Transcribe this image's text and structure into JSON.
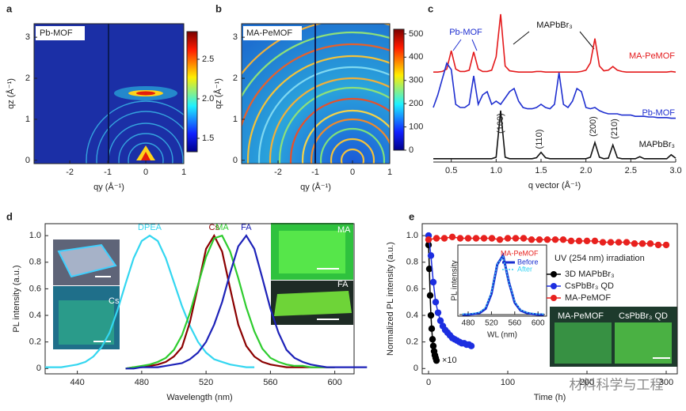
{
  "chart_data": [
    {
      "type": "image",
      "panel": "a",
      "label": "Pb-MOF",
      "xlabel": "qy (Å⁻¹)",
      "ylabel": "qz (Å⁻¹)",
      "xlim": [
        -2.94,
        1
      ],
      "xticks": [
        -2,
        -1,
        0,
        1
      ],
      "ylim": [
        -0.08,
        3.33
      ],
      "yticks": [
        0,
        1,
        2,
        3
      ],
      "colorbar": {
        "lim": [
          1.33,
          2.85
        ],
        "ticks": [
          1.5,
          {
            "value": 2,
            "label": "2.0"
          },
          2.5
        ]
      }
    },
    {
      "type": "image",
      "panel": "b",
      "label": "MA-PeMOF",
      "xlabel": "qy (Å⁻¹)",
      "ylabel": "qz (Å⁻¹)",
      "xlim": [
        -2.98,
        1
      ],
      "xticks": [
        -2,
        -1,
        0,
        1
      ],
      "ylim": [
        -0.08,
        3.33
      ],
      "yticks": [
        0,
        1,
        2,
        3
      ],
      "colorbar": {
        "lim": [
          0,
          520
        ],
        "ticks": [
          0,
          100,
          200,
          300,
          400,
          500
        ]
      }
    },
    {
      "type": "line",
      "panel": "c",
      "stacked": true,
      "xlabel": "q vector (Å⁻¹)",
      "xlim": [
        0.3,
        3.0
      ],
      "xticks": [
        0.5,
        {
          "value": 1,
          "label": "1.0"
        },
        1.5,
        {
          "value": 2,
          "label": "2.0"
        },
        2.5,
        {
          "value": 3,
          "label": "3.0"
        }
      ],
      "x": [
        0.3,
        0.35,
        0.4,
        0.45,
        0.5,
        0.55,
        0.6,
        0.65,
        0.7,
        0.75,
        0.8,
        0.85,
        0.9,
        0.95,
        1.0,
        1.05,
        1.1,
        1.15,
        1.2,
        1.25,
        1.3,
        1.35,
        1.4,
        1.45,
        1.5,
        1.55,
        1.6,
        1.65,
        1.7,
        1.75,
        1.8,
        1.85,
        1.9,
        1.95,
        2.0,
        2.05,
        2.1,
        2.15,
        2.2,
        2.25,
        2.3,
        2.35,
        2.4,
        2.45,
        2.5,
        2.55,
        2.6,
        2.65,
        2.7,
        2.75,
        2.8,
        2.85,
        2.9,
        2.95,
        3.0
      ],
      "series": [
        {
          "name": "MA-PeMOF",
          "color": "#e41a1c",
          "values": [
            0.05,
            0.05,
            0.06,
            0.1,
            0.4,
            0.1,
            0.06,
            0.06,
            0.08,
            0.38,
            0.1,
            0.06,
            0.06,
            0.08,
            0.3,
            1.0,
            0.15,
            0.07,
            0.06,
            0.05,
            0.05,
            0.05,
            0.05,
            0.06,
            0.06,
            0.05,
            0.05,
            0.05,
            0.05,
            0.05,
            0.05,
            0.05,
            0.05,
            0.06,
            0.08,
            0.2,
            0.6,
            0.15,
            0.07,
            0.08,
            0.14,
            0.08,
            0.06,
            0.05,
            0.05,
            0.05,
            0.05,
            0.05,
            0.05,
            0.05,
            0.05,
            0.05,
            0.05,
            0.06,
            0.05
          ]
        },
        {
          "name": "Pb-MOF",
          "color": "#1f2fd0",
          "values": [
            0.3,
            0.5,
            0.75,
            1.0,
            0.9,
            0.35,
            0.3,
            0.3,
            0.35,
            0.8,
            0.35,
            0.5,
            0.55,
            0.35,
            0.4,
            0.35,
            0.45,
            0.55,
            0.6,
            0.4,
            0.3,
            0.28,
            0.28,
            0.3,
            0.35,
            0.3,
            0.28,
            0.35,
            0.85,
            0.35,
            0.3,
            0.4,
            0.6,
            0.55,
            0.3,
            0.28,
            0.3,
            0.25,
            0.22,
            0.2,
            0.2,
            0.2,
            0.18,
            0.18,
            0.18,
            0.16,
            0.16,
            0.16,
            0.15,
            0.15,
            0.14,
            0.14,
            0.14,
            0.13,
            0.13
          ]
        },
        {
          "name": "MAPbBr₃",
          "color": "#111111",
          "values": [
            0.02,
            0.02,
            0.02,
            0.02,
            0.02,
            0.02,
            0.02,
            0.02,
            0.02,
            0.02,
            0.02,
            0.02,
            0.02,
            0.02,
            0.05,
            1.0,
            0.05,
            0.02,
            0.02,
            0.02,
            0.02,
            0.02,
            0.02,
            0.04,
            0.15,
            0.04,
            0.02,
            0.02,
            0.02,
            0.02,
            0.02,
            0.02,
            0.02,
            0.02,
            0.02,
            0.05,
            0.35,
            0.05,
            0.02,
            0.03,
            0.3,
            0.04,
            0.02,
            0.02,
            0.02,
            0.02,
            0.06,
            0.02,
            0.02,
            0.02,
            0.02,
            0.02,
            0.02,
            0.1,
            0.03
          ]
        }
      ],
      "annotations": [
        "Pb-MOF",
        "MAPbBr₃",
        "(100)",
        "(110)",
        "(200)",
        "(210)"
      ]
    },
    {
      "type": "line",
      "panel": "d",
      "xlabel": "Wavelength (nm)",
      "ylabel": "PL intensity (a.u.)",
      "xlim": [
        420,
        612
      ],
      "xticks": [
        440,
        480,
        520,
        560,
        600
      ],
      "ylim": [
        -0.04,
        1.09
      ],
      "yticks": [
        0,
        0.2,
        0.4,
        0.6,
        0.8,
        {
          "value": 1,
          "label": "1.0"
        }
      ],
      "x": [
        420,
        425,
        430,
        435,
        440,
        445,
        450,
        455,
        460,
        465,
        470,
        475,
        480,
        485,
        490,
        495,
        500,
        505,
        510,
        515,
        520,
        525,
        530,
        535,
        540,
        545,
        550,
        555,
        560,
        565,
        570,
        575,
        580,
        585,
        590,
        595,
        600,
        605,
        610,
        615,
        620
      ],
      "series": [
        {
          "name": "DPEA",
          "color": "#33d6f0",
          "values": [
            0.01,
            0.01,
            0.01,
            0.02,
            0.03,
            0.05,
            0.09,
            0.16,
            0.27,
            0.44,
            0.64,
            0.83,
            0.96,
            1.0,
            0.96,
            0.83,
            0.65,
            0.47,
            0.32,
            0.2,
            0.12,
            0.07,
            0.05,
            0.03,
            0.02,
            0.01,
            0.01,
            null,
            null,
            null,
            null,
            null,
            null,
            null,
            null,
            null,
            null,
            null,
            null,
            null,
            null
          ]
        },
        {
          "name": "Cs",
          "color": "#8b0000",
          "values": [
            null,
            null,
            null,
            null,
            null,
            null,
            null,
            null,
            null,
            null,
            0,
            0.01,
            0.01,
            0.02,
            0.03,
            0.05,
            0.09,
            0.16,
            0.35,
            0.62,
            0.9,
            1.0,
            0.88,
            0.6,
            0.33,
            0.17,
            0.09,
            0.05,
            0.03,
            0.02,
            0.01,
            0.01,
            0.01,
            0.01,
            0.01,
            0.01,
            0.01,
            null,
            null,
            null,
            null
          ]
        },
        {
          "name": "MA",
          "color": "#2ecc2e",
          "values": [
            null,
            null,
            null,
            null,
            null,
            null,
            null,
            null,
            null,
            null,
            0,
            0.01,
            0.02,
            0.03,
            0.05,
            0.08,
            0.14,
            0.25,
            0.42,
            0.63,
            0.84,
            0.98,
            1.0,
            0.88,
            0.68,
            0.46,
            0.28,
            0.15,
            0.08,
            0.05,
            0.03,
            0.02,
            0.02,
            0.01,
            0.01,
            0.01,
            0.01,
            null,
            null,
            null,
            null
          ]
        },
        {
          "name": "FA",
          "color": "#1d22b8",
          "values": [
            null,
            null,
            null,
            null,
            null,
            null,
            null,
            null,
            null,
            null,
            0,
            0,
            0.01,
            0.01,
            0.01,
            0.02,
            0.03,
            0.04,
            0.07,
            0.12,
            0.2,
            0.33,
            0.5,
            0.72,
            0.92,
            1.0,
            0.9,
            0.68,
            0.45,
            0.27,
            0.14,
            0.08,
            0.05,
            0.03,
            0.02,
            0.01,
            0.01,
            0.01,
            0.01,
            0.01,
            0.01
          ]
        }
      ],
      "photo_labels": [
        "Cs",
        "MA",
        "FA"
      ]
    },
    {
      "type": "scatter",
      "panel": "e",
      "xlabel": "Time (h)",
      "ylabel": "Normalized PL intensity (a.u.)",
      "xlim": [
        -8,
        314
      ],
      "xticks": [
        0,
        100,
        200,
        300
      ],
      "ylim": [
        -0.04,
        1.09
      ],
      "yticks": [
        0,
        0.2,
        0.4,
        0.6,
        0.8,
        {
          "value": 1,
          "label": "1.0"
        }
      ],
      "legend_title": "UV (254 nm) irradiation",
      "series": [
        {
          "name": "3D MAPbBr₃",
          "color": "#000000",
          "x": [
            0,
            1,
            2,
            3,
            4,
            5,
            6,
            7,
            8,
            9,
            10
          ],
          "values": [
            0.93,
            0.75,
            0.55,
            0.4,
            0.3,
            0.22,
            0.17,
            0.13,
            0.1,
            0.08,
            0.06
          ]
        },
        {
          "name": "CsPbBr₃ QD",
          "color": "#1c2ee0",
          "x": [
            0,
            3,
            6,
            9,
            12,
            15,
            18,
            21,
            24,
            27,
            30,
            33,
            36,
            39,
            42,
            45,
            48,
            51,
            54
          ],
          "values": [
            1.0,
            0.85,
            0.65,
            0.5,
            0.42,
            0.36,
            0.32,
            0.29,
            0.27,
            0.25,
            0.23,
            0.22,
            0.21,
            0.2,
            0.19,
            0.19,
            0.18,
            0.18,
            0.17
          ]
        },
        {
          "name": "MA-PeMOF",
          "color": "#e8211e",
          "x": [
            0,
            10,
            20,
            30,
            40,
            50,
            60,
            70,
            80,
            90,
            100,
            110,
            120,
            130,
            140,
            150,
            160,
            170,
            180,
            190,
            200,
            210,
            220,
            230,
            240,
            250,
            260,
            270,
            280,
            290,
            300
          ],
          "values": [
            0.97,
            0.98,
            0.98,
            0.99,
            0.98,
            0.98,
            0.98,
            0.98,
            0.98,
            0.97,
            0.98,
            0.98,
            0.98,
            0.97,
            0.97,
            0.97,
            0.97,
            0.97,
            0.96,
            0.96,
            0.96,
            0.96,
            0.95,
            0.95,
            0.95,
            0.95,
            0.94,
            0.94,
            0.94,
            0.93,
            0.93
          ]
        }
      ],
      "annotation": "×10",
      "photo_labels": [
        "MA-PeMOF",
        "CsPbBr₃ QD"
      ],
      "inset": {
        "type": "line",
        "title": "MA-PeMOF",
        "xlabel": "WL (nm)",
        "ylabel": "PL intensity",
        "xlim": [
          465,
          612
        ],
        "xticks": [
          480,
          520,
          560,
          600
        ],
        "ylim": [
          0,
          1.15
        ],
        "x": [
          470,
          480,
          490,
          500,
          510,
          520,
          530,
          540,
          550,
          560,
          570,
          580,
          590,
          600,
          610
        ],
        "series": [
          {
            "name": "Before",
            "color": "#1a2fd0",
            "values": [
              0,
              0,
              0.01,
              0.03,
              0.1,
              0.35,
              0.85,
              1.0,
              0.55,
              0.2,
              0.07,
              0.03,
              0.01,
              0,
              0
            ]
          },
          {
            "name": "After",
            "color": "#35d3f3",
            "values": [
              0.01,
              0.01,
              0.02,
              0.04,
              0.12,
              0.38,
              0.86,
              0.98,
              0.55,
              0.22,
              0.08,
              0.04,
              0.02,
              0.01,
              0.01
            ]
          }
        ]
      }
    }
  ],
  "watermark": "材料科学与工程"
}
